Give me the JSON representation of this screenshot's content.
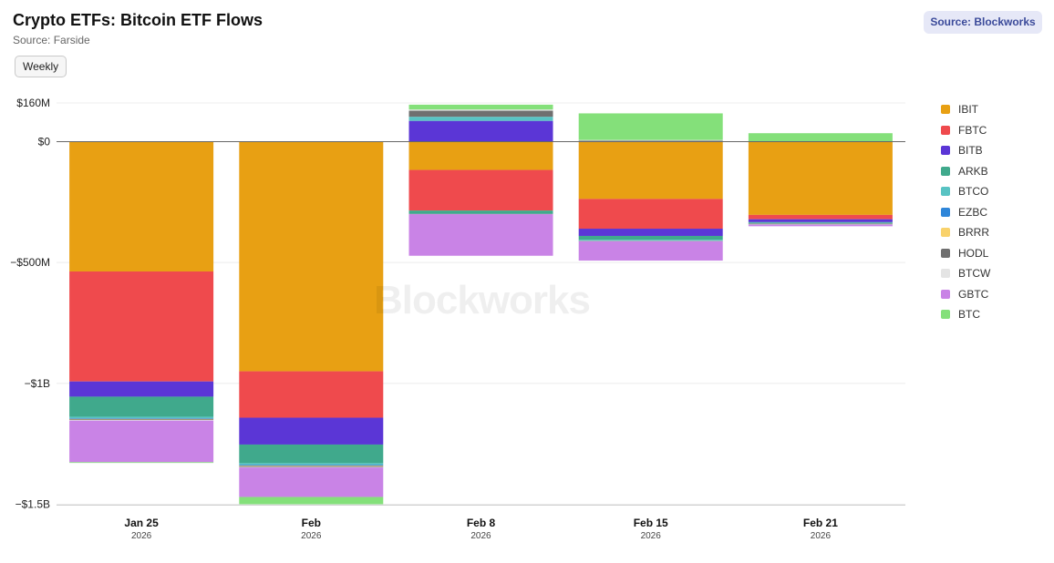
{
  "header": {
    "title": "Crypto ETFs: Bitcoin ETF Flows",
    "subtitle": "Source: Farside",
    "period_button": "Weekly",
    "source_badge": "Source: Blockworks",
    "watermark": "Blockworks"
  },
  "legend": [
    {
      "name": "IBIT",
      "color": "#e8a013"
    },
    {
      "name": "FBTC",
      "color": "#ef4a4d"
    },
    {
      "name": "BITB",
      "color": "#5b36d6"
    },
    {
      "name": "ARKB",
      "color": "#40a98c"
    },
    {
      "name": "BTCO",
      "color": "#58c3c3"
    },
    {
      "name": "EZBC",
      "color": "#2f86d9"
    },
    {
      "name": "BRRR",
      "color": "#f9d26b"
    },
    {
      "name": "HODL",
      "color": "#6f6f6f"
    },
    {
      "name": "BTCW",
      "color": "#e4e4e4"
    },
    {
      "name": "GBTC",
      "color": "#c983e6"
    },
    {
      "name": "BTC",
      "color": "#84e07a"
    }
  ],
  "chart_data": {
    "type": "bar",
    "stacked": true,
    "categories": [
      "Jan 25",
      "Feb",
      "Feb 8",
      "Feb 15",
      "Feb 21"
    ],
    "category_years": [
      "2026",
      "2026",
      "2026",
      "2026",
      "2026"
    ],
    "yticks": [
      {
        "value": 160,
        "label": "$160M"
      },
      {
        "value": 0,
        "label": "$0"
      },
      {
        "value": -500,
        "label": "−$500M"
      },
      {
        "value": -1000,
        "label": "−$1B"
      },
      {
        "value": -1500,
        "label": "−$1.5B"
      }
    ],
    "ylim": [
      -1500,
      160
    ],
    "unit": "$M",
    "series": [
      {
        "name": "IBIT",
        "color": "#e8a013",
        "values": [
          -537,
          -950,
          -117,
          -237,
          -303
        ]
      },
      {
        "name": "FBTC",
        "color": "#ef4a4d",
        "values": [
          -455,
          -192,
          -168,
          -123,
          -18
        ]
      },
      {
        "name": "BITB",
        "color": "#5b36d6",
        "values": [
          -63,
          -111,
          86,
          -30,
          -12
        ]
      },
      {
        "name": "ARKB",
        "color": "#40a98c",
        "values": [
          -83,
          -77,
          -13,
          -16,
          -3
        ]
      },
      {
        "name": "BTCO",
        "color": "#58c3c3",
        "values": [
          -6,
          -7,
          17,
          -4,
          -2
        ]
      },
      {
        "name": "EZBC",
        "color": "#2f86d9",
        "values": [
          -3,
          -3,
          -1,
          -1,
          -1
        ]
      },
      {
        "name": "BRRR",
        "color": "#f9d26b",
        "values": [
          -2,
          -2,
          -1,
          -1,
          -1
        ]
      },
      {
        "name": "HODL",
        "color": "#6f6f6f",
        "values": [
          -3,
          -4,
          25,
          4,
          -2
        ]
      },
      {
        "name": "BTCW",
        "color": "#e4e4e4",
        "values": [
          -2,
          -2,
          5,
          3,
          -1
        ]
      },
      {
        "name": "GBTC",
        "color": "#c983e6",
        "values": [
          -172,
          -122,
          -172,
          -80,
          -7
        ]
      },
      {
        "name": "BTC",
        "color": "#84e07a",
        "values": [
          -3,
          -30,
          20,
          110,
          35
        ]
      }
    ]
  }
}
